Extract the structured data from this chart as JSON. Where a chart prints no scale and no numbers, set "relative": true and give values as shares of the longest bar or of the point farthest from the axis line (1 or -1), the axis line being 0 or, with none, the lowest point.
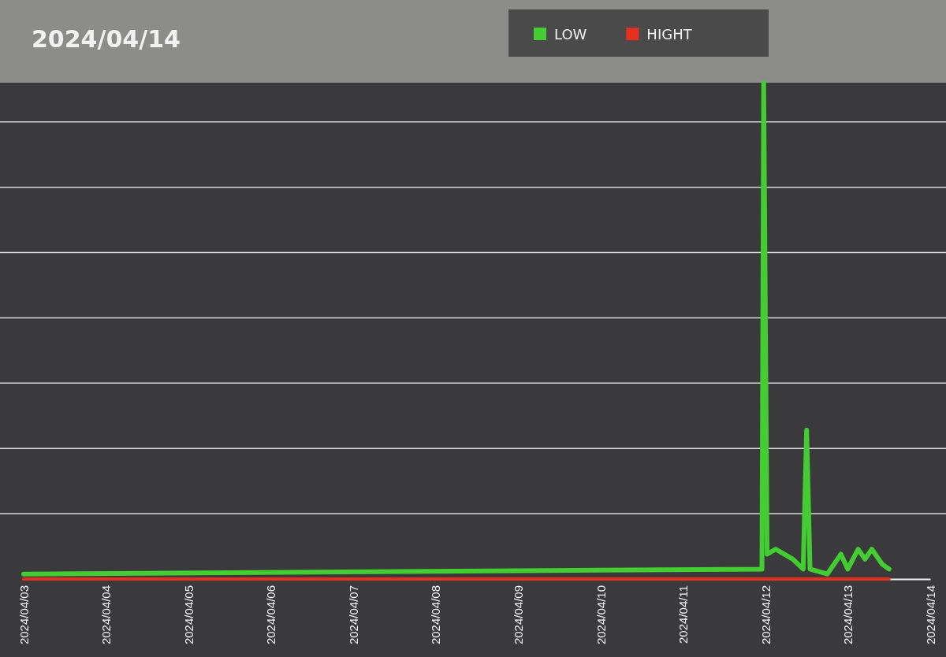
{
  "chart_data": {
    "type": "line",
    "title": "2024/04/14",
    "relative": true,
    "grid": true,
    "legend": "top",
    "x": [
      "2024-04-03",
      "2024-04-11T23:00",
      "2024-04-11T23:30",
      "2024-04-12T00:30",
      "2024-04-12T03:00",
      "2024-04-12T08:00",
      "2024-04-12T11:00",
      "2024-04-12T12:00",
      "2024-04-12T13:00",
      "2024-04-12T18:00",
      "2024-04-12T22:00",
      "2024-04-13T00:00",
      "2024-04-13T03:00",
      "2024-04-13T05:00",
      "2024-04-13T07:00",
      "2024-04-13T10:00",
      "2024-04-13T12:00"
    ],
    "xlim": [
      "2024-04-03",
      "2024-04-14"
    ],
    "xticks": [
      {
        "value": "2024-04-03",
        "label": "2024/04/03"
      },
      {
        "value": "2024-04-04",
        "label": "2024/04/04"
      },
      {
        "value": "2024-04-05",
        "label": "2024/04/05"
      },
      {
        "value": "2024-04-06",
        "label": "2024/04/06"
      },
      {
        "value": "2024-04-07",
        "label": "2024/04/07"
      },
      {
        "value": "2024-04-08",
        "label": "2024/04/08"
      },
      {
        "value": "2024-04-09",
        "label": "2024/04/09"
      },
      {
        "value": "2024-04-10",
        "label": "2024/04/10"
      },
      {
        "value": "2024-04-11",
        "label": "2024/04/11"
      },
      {
        "value": "2024-04-12",
        "label": "2024/04/12"
      },
      {
        "value": "2024-04-13",
        "label": "2024/04/13"
      },
      {
        "value": "2024-04-14",
        "label": "2024/04/14"
      }
    ],
    "series": [
      {
        "name": "LOW",
        "color": "#44cc33",
        "values": [
          0.01,
          0.02,
          1,
          0.05,
          0.06,
          0.04,
          0.02,
          0.3,
          0.02,
          0.01,
          0.05,
          0.02,
          0.06,
          0.04,
          0.06,
          0.03,
          0.02
        ]
      },
      {
        "name": "HIGHT",
        "color": "#e83020",
        "x": [
          "2024-04-03",
          "2024-04-13T12:00"
        ],
        "values": [
          0,
          0
        ]
      }
    ]
  }
}
